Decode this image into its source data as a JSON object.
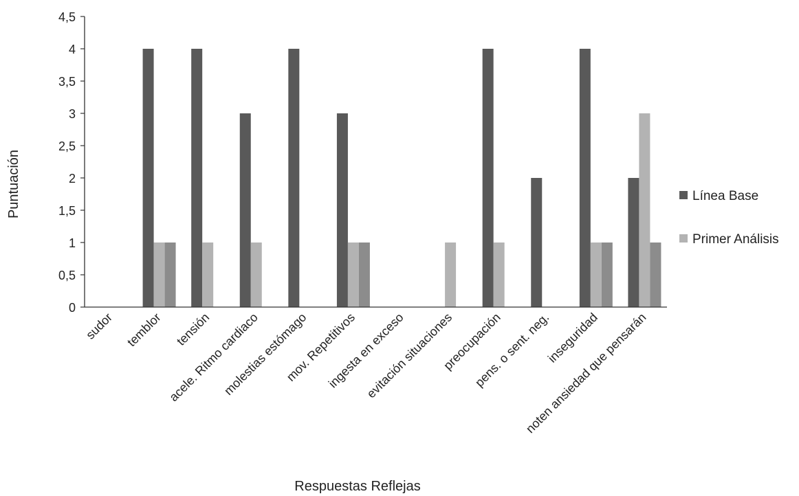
{
  "chart_data": {
    "type": "bar",
    "title": "",
    "xlabel": "Respuestas Reflejas",
    "ylabel": "Puntuación",
    "ylim": [
      0,
      4.5
    ],
    "yticks": [
      "0",
      "0,5",
      "1",
      "1,5",
      "2",
      "2,5",
      "3",
      "3,5",
      "4",
      "4,5"
    ],
    "grid": false,
    "legend_position": "right",
    "categories": [
      "sudor",
      "temblor",
      "tensión",
      "acele. Ritmo cardiaco",
      "molestias estómago",
      "mov. Repetitivos",
      "ingesta en exceso",
      "evitación situaciones",
      "preocupación",
      "pens. o sent. neg.",
      "inseguridad",
      "noten ansiedad que pensarán"
    ],
    "series": [
      {
        "name": "Línea Base",
        "color": "#595959",
        "values": [
          0,
          4,
          4,
          3,
          4,
          3,
          0,
          0,
          4,
          2,
          4,
          2
        ],
        "in_legend": true
      },
      {
        "name": "Primer Análisis",
        "color": "#b3b3b3",
        "values": [
          0,
          1,
          1,
          1,
          0,
          1,
          0,
          1,
          1,
          0,
          1,
          3
        ],
        "in_legend": true
      },
      {
        "name": "",
        "color": "#8c8c8c",
        "values": [
          0,
          1,
          0,
          0,
          0,
          1,
          0,
          0,
          0,
          0,
          1,
          1
        ],
        "in_legend": false
      }
    ]
  }
}
